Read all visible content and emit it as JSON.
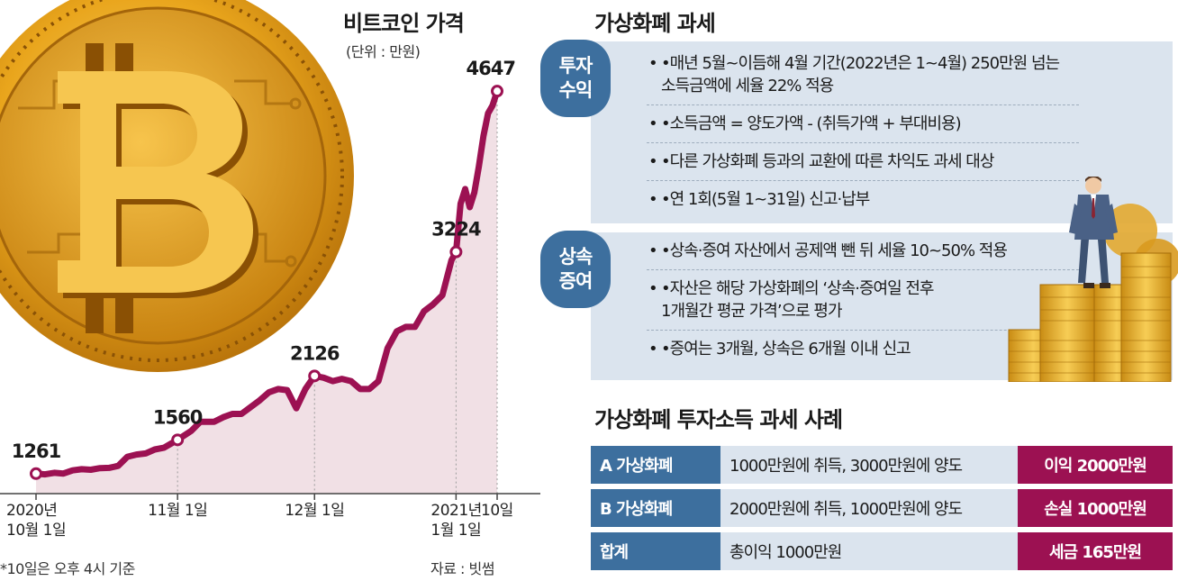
{
  "chart": {
    "title": "비트코인 가격",
    "unit": "(단위 : 만원)",
    "note": "*10일은 오후 4시 기준",
    "source": "자료 : 빗썸"
  },
  "chart_data": {
    "type": "area",
    "title": "비트코인 가격",
    "unit": "만원",
    "x_tick_labels": [
      [
        "2020년",
        "10월 1일"
      ],
      [
        "11월 1일"
      ],
      [
        "12월 1일"
      ],
      [
        "2021년",
        "1월 1일"
      ],
      [
        "10일"
      ]
    ],
    "x_ticks": [
      "2020-10-01",
      "2020-11-01",
      "2020-12-01",
      "2021-01-01",
      "2021-01-10"
    ],
    "x_range": [
      "2020-10-01",
      "2021-01-10"
    ],
    "y_range": [
      1100,
      4800
    ],
    "annotated_points": [
      {
        "x": "2020-10-01",
        "y": 1261,
        "label": "1261"
      },
      {
        "x": "2020-11-01",
        "y": 1560,
        "label": "1560"
      },
      {
        "x": "2020-12-01",
        "y": 2126,
        "label": "2126"
      },
      {
        "x": "2021-01-01",
        "y": 3224,
        "label": "3224"
      },
      {
        "x": "2021-01-10",
        "y": 4647,
        "label": "4647"
      }
    ],
    "series": [
      {
        "color": "#9c1152",
        "fill": "#f1e0e5",
        "points": [
          [
            "2020-10-01",
            1261
          ],
          [
            "2020-10-03",
            1255
          ],
          [
            "2020-10-05",
            1268
          ],
          [
            "2020-10-07",
            1262
          ],
          [
            "2020-10-09",
            1290
          ],
          [
            "2020-10-11",
            1300
          ],
          [
            "2020-10-13",
            1295
          ],
          [
            "2020-10-15",
            1310
          ],
          [
            "2020-10-17",
            1312
          ],
          [
            "2020-10-19",
            1330
          ],
          [
            "2020-10-21",
            1410
          ],
          [
            "2020-10-23",
            1430
          ],
          [
            "2020-10-25",
            1440
          ],
          [
            "2020-10-27",
            1475
          ],
          [
            "2020-10-29",
            1490
          ],
          [
            "2020-11-01",
            1560
          ],
          [
            "2020-11-04",
            1640
          ],
          [
            "2020-11-06",
            1720
          ],
          [
            "2020-11-09",
            1720
          ],
          [
            "2020-11-11",
            1760
          ],
          [
            "2020-11-13",
            1790
          ],
          [
            "2020-11-15",
            1790
          ],
          [
            "2020-11-17",
            1850
          ],
          [
            "2020-11-19",
            1910
          ],
          [
            "2020-11-21",
            1980
          ],
          [
            "2020-11-23",
            2010
          ],
          [
            "2020-11-25",
            2000
          ],
          [
            "2020-11-27",
            1840
          ],
          [
            "2020-11-29",
            2010
          ],
          [
            "2020-12-01",
            2126
          ],
          [
            "2020-12-03",
            2110
          ],
          [
            "2020-12-05",
            2080
          ],
          [
            "2020-12-07",
            2100
          ],
          [
            "2020-12-09",
            2080
          ],
          [
            "2020-12-11",
            2010
          ],
          [
            "2020-12-13",
            2010
          ],
          [
            "2020-12-15",
            2080
          ],
          [
            "2020-12-17",
            2370
          ],
          [
            "2020-12-19",
            2520
          ],
          [
            "2020-12-21",
            2560
          ],
          [
            "2020-12-23",
            2560
          ],
          [
            "2020-12-25",
            2700
          ],
          [
            "2020-12-27",
            2760
          ],
          [
            "2020-12-29",
            2840
          ],
          [
            "2020-12-31",
            3150
          ],
          [
            "2021-01-01",
            3224
          ],
          [
            "2021-01-02",
            3650
          ],
          [
            "2021-01-03",
            3780
          ],
          [
            "2021-01-04",
            3620
          ],
          [
            "2021-01-05",
            3750
          ],
          [
            "2021-01-06",
            3980
          ],
          [
            "2021-01-07",
            4250
          ],
          [
            "2021-01-08",
            4450
          ],
          [
            "2021-01-09",
            4520
          ],
          [
            "2021-01-10",
            4647
          ]
        ]
      }
    ]
  },
  "tax": {
    "title": "가상화폐 과세",
    "investment": {
      "label": [
        "투자",
        "수익"
      ],
      "items": [
        [
          "•매년 5월~이듬해 4월 기간(2022년은 1~4월) 250만원 넘는",
          "소득금액에 세율 22% 적용"
        ],
        [
          "•소득금액 = 양도가액 - (취득가액 + 부대비용)"
        ],
        [
          "•다른 가상화폐 등과의 교환에 따른 차익도 과세 대상"
        ],
        [
          "•연 1회(5월 1~31일) 신고·납부"
        ]
      ]
    },
    "inheritance": {
      "label": [
        "상속",
        "증여"
      ],
      "items": [
        [
          "•상속·증여 자산에서 공제액 뺀 뒤 세율 10~50% 적용"
        ],
        [
          "•자산은 해당 가상화폐의 ‘상속·증여일 전후",
          "1개월간 평균 가격’으로 평가"
        ],
        [
          "•증여는 3개월, 상속은 6개월 이내 신고"
        ]
      ]
    }
  },
  "cases": {
    "title": "가상화폐 투자소득 과세 사례",
    "rows": [
      {
        "label": "A 가상화폐",
        "desc": "1000만원에 취득, 3000만원에 양도",
        "result": "이익 2000만원"
      },
      {
        "label": "B 가상화폐",
        "desc": "2000만원에 취득, 1000만원에 양도",
        "result": "손실 1000만원"
      },
      {
        "label": "합계",
        "desc": "총이익 1000만원",
        "result": "세금 165만원"
      }
    ]
  },
  "colors": {
    "accent_blue": "#3d6f9e",
    "light_blue": "#dbe4ee",
    "wine": "#9c1152",
    "area_fill": "#f1e0e5",
    "gold": "#e9a51c"
  },
  "icons": [
    "bitcoin-coin-illustration",
    "businessman-on-coins-illustration"
  ]
}
